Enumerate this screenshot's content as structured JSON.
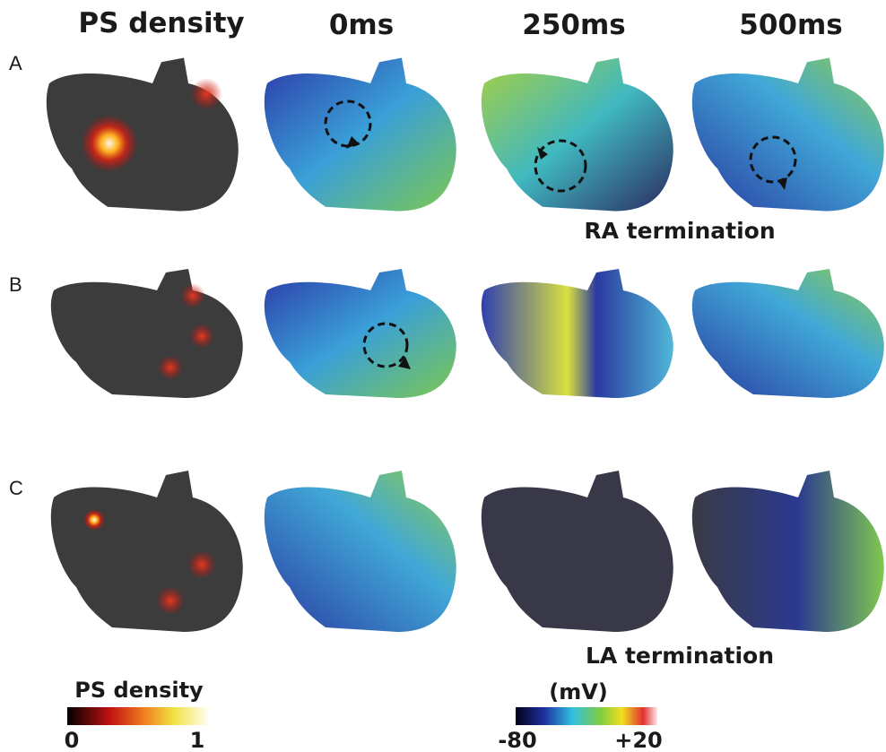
{
  "columns": [
    "PS density",
    "0ms",
    "250ms",
    "500ms"
  ],
  "rows": [
    "A",
    "B",
    "C"
  ],
  "annotations": {
    "ra": "RA termination",
    "la": "LA termination"
  },
  "colorbars": {
    "density": {
      "title": "PS density",
      "min": "0",
      "max": "1"
    },
    "voltage": {
      "title": "(mV)",
      "min": "-80",
      "max": "+20"
    }
  }
}
